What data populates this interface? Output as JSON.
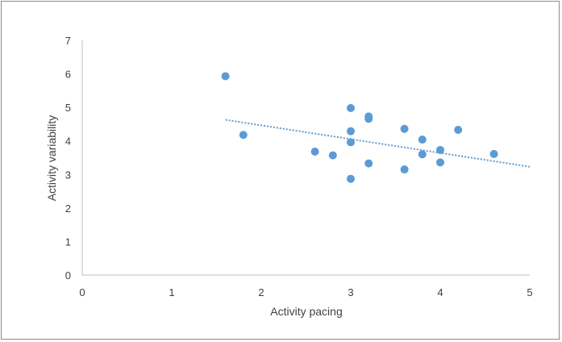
{
  "chart_data": {
    "type": "scatter",
    "title": "",
    "xlabel": "Activity pacing",
    "ylabel": "Activity variability",
    "xlim": [
      0,
      5
    ],
    "ylim": [
      0,
      7
    ],
    "xticks": [
      0,
      1,
      2,
      3,
      4,
      5
    ],
    "yticks": [
      0,
      1,
      2,
      3,
      4,
      5,
      6,
      7
    ],
    "grid": false,
    "legend": "none",
    "marker_color": "#5b9bd5",
    "trendline": {
      "type": "linear",
      "style": "dotted",
      "color": "#5b9bd5",
      "x_range": [
        1.6,
        5.0
      ],
      "y_range": [
        4.63,
        3.23
      ]
    },
    "series": [
      {
        "points": [
          {
            "x": 1.6,
            "y": 5.93
          },
          {
            "x": 1.8,
            "y": 4.18
          },
          {
            "x": 2.6,
            "y": 3.68
          },
          {
            "x": 2.8,
            "y": 3.57
          },
          {
            "x": 3.0,
            "y": 4.98
          },
          {
            "x": 3.0,
            "y": 4.29
          },
          {
            "x": 3.0,
            "y": 3.96
          },
          {
            "x": 3.0,
            "y": 2.87
          },
          {
            "x": 3.2,
            "y": 4.73
          },
          {
            "x": 3.2,
            "y": 4.66
          },
          {
            "x": 3.2,
            "y": 3.33
          },
          {
            "x": 3.6,
            "y": 4.36
          },
          {
            "x": 3.6,
            "y": 3.15
          },
          {
            "x": 3.8,
            "y": 4.04
          },
          {
            "x": 3.8,
            "y": 3.6
          },
          {
            "x": 4.0,
            "y": 3.73
          },
          {
            "x": 4.0,
            "y": 3.36
          },
          {
            "x": 4.2,
            "y": 4.33
          },
          {
            "x": 4.6,
            "y": 3.61
          }
        ]
      }
    ]
  }
}
